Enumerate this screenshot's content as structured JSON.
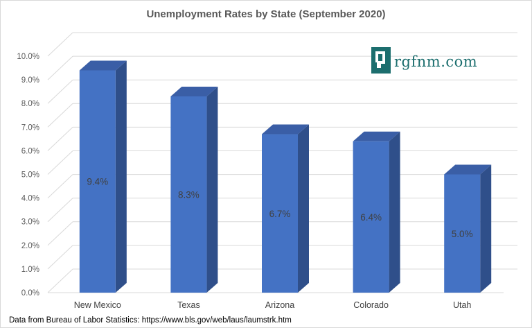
{
  "chart_data": {
    "type": "bar",
    "title": "Unemployment Rates by State (September 2020)",
    "categories": [
      "New Mexico",
      "Texas",
      "Arizona",
      "Colorado",
      "Utah"
    ],
    "values": [
      9.4,
      8.3,
      6.7,
      6.4,
      5.0
    ],
    "data_labels": [
      "9.4%",
      "8.3%",
      "6.7%",
      "6.4%",
      "5.0%"
    ],
    "ylim": [
      0,
      10
    ],
    "yticks": [
      0,
      1,
      2,
      3,
      4,
      5,
      6,
      7,
      8,
      9,
      10
    ],
    "ytick_labels": [
      "0.0%",
      "1.0%",
      "2.0%",
      "3.0%",
      "4.0%",
      "5.0%",
      "6.0%",
      "7.0%",
      "8.0%",
      "9.0%",
      "10.0%"
    ],
    "xlabel": "",
    "ylabel": "",
    "grid": true,
    "style": "3d-column",
    "colors": {
      "bar_front": "#4472c4",
      "bar_side": "#2f4f8a",
      "bar_top": "#3a5ea6",
      "grid": "#d9d9d9"
    }
  },
  "source_note": "Data from Bureau of Labor Statistics: https://www.bls.gov/web/laus/laumstrk.htm",
  "logo": {
    "text": "rgfnm.com",
    "icon": "new-mexico-state-icon",
    "color": "#1c6e6e"
  }
}
